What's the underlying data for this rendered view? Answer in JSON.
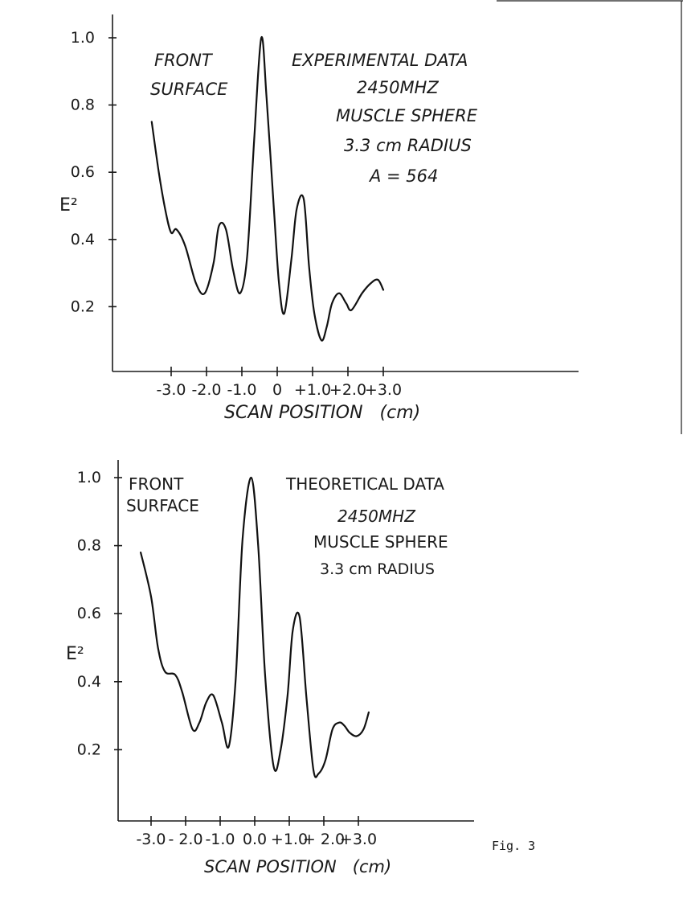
{
  "fig_label": "Fig. 3",
  "chart_data": [
    {
      "type": "line",
      "title": "EXPERIMENTAL DATA",
      "annotations": [
        "FRONT SURFACE",
        "2450MHZ",
        "MUSCLE SPHERE",
        "3.3 cm RADIUS",
        "A = 564"
      ],
      "annotation_front": [
        "FRONT",
        "SURFACE"
      ],
      "annotation_info": [
        "2450MHZ",
        "MUSCLE SPHERE",
        "3.3 cm RADIUS",
        "A = 564"
      ],
      "xlabel": "SCAN POSITION   (cm)",
      "ylabel": "E²",
      "xlim": [
        -3.9,
        3.0
      ],
      "ylim": [
        0.0,
        1.05
      ],
      "x_tick_values": [
        -3.0,
        -2.0,
        -1.0,
        0.0,
        1.0,
        2.0,
        3.0
      ],
      "x_tick_labels": [
        "-3.0",
        "-2.0",
        "-1.0",
        "0",
        "+1.0",
        "+2.0",
        "+3.0"
      ],
      "y_tick_values": [
        0.2,
        0.4,
        0.6,
        0.8,
        1.0
      ],
      "y_tick_labels": [
        "0.2",
        "0.4",
        "0.6",
        "0.8",
        "1.0"
      ],
      "grid": false,
      "x": [
        -3.55,
        -3.35,
        -3.15,
        -3.0,
        -2.85,
        -2.6,
        -2.3,
        -2.05,
        -1.8,
        -1.65,
        -1.45,
        -1.25,
        -1.05,
        -0.85,
        -0.65,
        -0.45,
        -0.3,
        -0.1,
        0.05,
        0.2,
        0.4,
        0.55,
        0.75,
        0.9,
        1.05,
        1.25,
        1.4,
        1.55,
        1.75,
        1.95,
        2.1,
        2.4,
        2.65,
        2.85,
        3.0
      ],
      "y": [
        0.75,
        0.6,
        0.48,
        0.42,
        0.43,
        0.38,
        0.27,
        0.24,
        0.33,
        0.44,
        0.43,
        0.31,
        0.24,
        0.35,
        0.7,
        1.0,
        0.82,
        0.5,
        0.27,
        0.18,
        0.34,
        0.49,
        0.52,
        0.32,
        0.18,
        0.1,
        0.14,
        0.21,
        0.24,
        0.21,
        0.19,
        0.24,
        0.27,
        0.28,
        0.25
      ]
    },
    {
      "type": "line",
      "title": "THEORETICAL DATA",
      "annotations": [
        "FRONT SURFACE",
        "2450MHZ",
        "MUSCLE SPHERE",
        "3.3 cm RADIUS"
      ],
      "annotation_front": [
        "FRONT",
        "SURFACE"
      ],
      "annotation_info": [
        "2450MHZ",
        "MUSCLE SPHERE",
        "3.3 cm RADIUS"
      ],
      "xlabel": "SCAN POSITION   (cm)",
      "ylabel": "E²",
      "xlim": [
        -3.5,
        3.9
      ],
      "ylim": [
        0.0,
        1.05
      ],
      "x_tick_values": [
        -3.0,
        -2.0,
        -1.0,
        0.0,
        1.0,
        2.0,
        3.0
      ],
      "x_tick_labels": [
        "-3.0",
        "- 2.0",
        "-1.0",
        "0.0",
        "+1.0",
        "+ 2.0",
        "+3.0"
      ],
      "y_tick_values": [
        0.2,
        0.4,
        0.6,
        0.8,
        1.0
      ],
      "y_tick_labels": [
        "0.2",
        "0.4",
        "0.6",
        "0.8",
        "1.0"
      ],
      "grid": false,
      "x": [
        -3.3,
        -3.0,
        -2.8,
        -2.6,
        -2.3,
        -2.1,
        -1.8,
        -1.6,
        -1.4,
        -1.2,
        -0.95,
        -0.75,
        -0.55,
        -0.35,
        -0.1,
        0.1,
        0.3,
        0.55,
        0.75,
        0.95,
        1.1,
        1.3,
        1.5,
        1.7,
        1.85,
        2.05,
        2.25,
        2.45,
        2.6,
        2.75,
        2.95,
        3.15,
        3.3
      ],
      "y": [
        0.78,
        0.65,
        0.5,
        0.43,
        0.42,
        0.37,
        0.26,
        0.28,
        0.34,
        0.36,
        0.28,
        0.21,
        0.41,
        0.82,
        1.0,
        0.8,
        0.42,
        0.15,
        0.2,
        0.36,
        0.55,
        0.59,
        0.35,
        0.14,
        0.13,
        0.17,
        0.26,
        0.28,
        0.27,
        0.25,
        0.24,
        0.26,
        0.31
      ]
    }
  ]
}
